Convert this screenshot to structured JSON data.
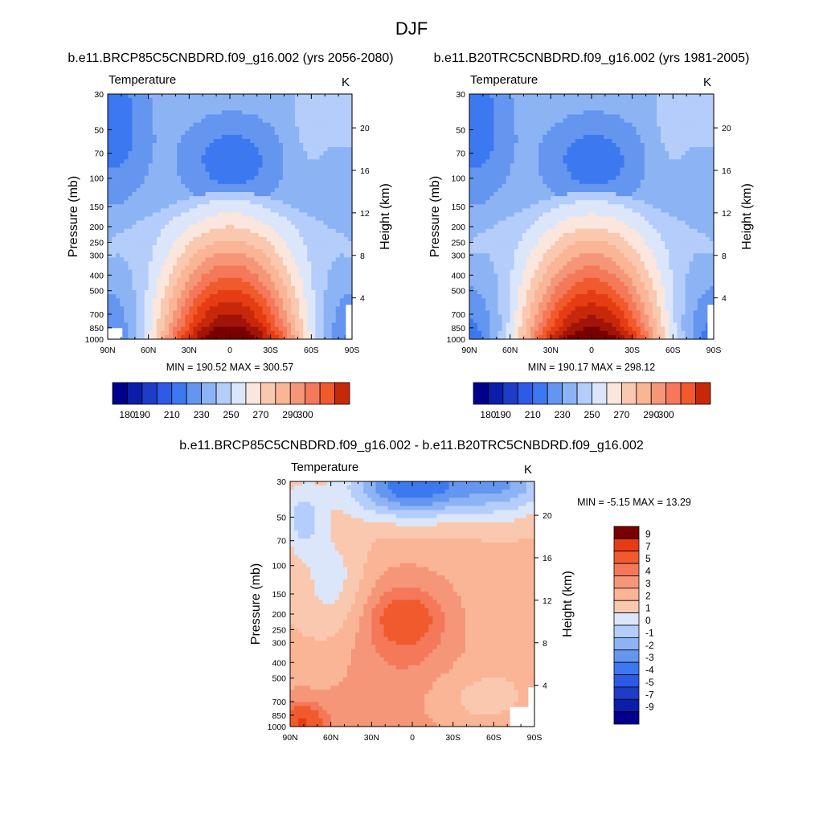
{
  "figure": {
    "title": "DJF",
    "colors": {
      "abs_palette": [
        "#00008c",
        "#0a1eaa",
        "#1e3cc8",
        "#2d5ae6",
        "#3c78f0",
        "#6496f0",
        "#8cb4f5",
        "#b4cdfa",
        "#dce6fa",
        "#fae6dc",
        "#fac8af",
        "#fab496",
        "#f59678",
        "#f5785a",
        "#f05a2d",
        "#e63c14",
        "#c8280a",
        "#a0140a",
        "#780000"
      ],
      "diff_palette": [
        "#00008c",
        "#0a1eaa",
        "#1e3cc8",
        "#2d5ae6",
        "#3c78f0",
        "#6496f0",
        "#8cb4f5",
        "#b4cdfa",
        "#dce6fa",
        "#fae6dc",
        "#fac8af",
        "#fab496",
        "#f59678",
        "#f5785a",
        "#f05a2d",
        "#e63c14",
        "#c8280a",
        "#780000"
      ]
    }
  },
  "chart_data": [
    {
      "type": "heatmap",
      "id": "panel1",
      "title": "b.e11.BRCP85C5CNBDRD.f09_g16.002 (yrs 2056-2080)",
      "variable": "Temperature",
      "units": "K",
      "xlabel": "",
      "ylabel": "Pressure (mb)",
      "y2label": "Height (km)",
      "x_ticks": [
        "90N",
        "60N",
        "30N",
        "0",
        "30S",
        "60S",
        "90S"
      ],
      "y_ticks": [
        "30",
        "50",
        "70",
        "100",
        "150",
        "200",
        "250",
        "300",
        "400",
        "500",
        "700",
        "850",
        "1000"
      ],
      "y2_ticks": [
        "20",
        "16",
        "12",
        "8",
        "4"
      ],
      "min_label": "MIN = 190.52",
      "max_label": "MAX = 300.57",
      "min": 190.52,
      "max": 300.57,
      "colorbar_ticks": [
        "180",
        "190",
        "210",
        "230",
        "250",
        "270",
        "290",
        "300"
      ]
    },
    {
      "type": "heatmap",
      "id": "panel2",
      "title": "b.e11.B20TRC5CNBDRD.f09_g16.002 (yrs 1981-2005)",
      "variable": "Temperature",
      "units": "K",
      "xlabel": "",
      "ylabel": "Pressure (mb)",
      "y2label": "Height (km)",
      "x_ticks": [
        "90N",
        "60N",
        "30N",
        "0",
        "30S",
        "60S",
        "90S"
      ],
      "y_ticks": [
        "30",
        "50",
        "70",
        "100",
        "150",
        "200",
        "250",
        "300",
        "400",
        "500",
        "700",
        "850",
        "1000"
      ],
      "y2_ticks": [
        "20",
        "16",
        "12",
        "8",
        "4"
      ],
      "min_label": "MIN = 190.17",
      "max_label": "MAX = 298.12",
      "min": 190.17,
      "max": 298.12,
      "colorbar_ticks": [
        "180",
        "190",
        "210",
        "230",
        "250",
        "270",
        "290",
        "300"
      ]
    },
    {
      "type": "heatmap",
      "id": "panel3",
      "title": "b.e11.BRCP85C5CNBDRD.f09_g16.002 - b.e11.B20TRC5CNBDRD.f09_g16.002",
      "variable": "Temperature",
      "units": "K",
      "xlabel": "",
      "ylabel": "Pressure (mb)",
      "y2label": "Height (km)",
      "x_ticks": [
        "90N",
        "60N",
        "30N",
        "0",
        "30S",
        "60S",
        "90S"
      ],
      "y_ticks": [
        "30",
        "50",
        "70",
        "100",
        "150",
        "200",
        "250",
        "300",
        "400",
        "500",
        "700",
        "850",
        "1000"
      ],
      "y2_ticks": [
        "20",
        "16",
        "12",
        "8",
        "4"
      ],
      "stats_label": "MIN =  -5.15  MAX =  13.29",
      "min": -5.15,
      "max": 13.29,
      "colorbar_ticks": [
        "9",
        "7",
        "5",
        "4",
        "3",
        "2",
        "1",
        "0",
        "-1",
        "-2",
        "-3",
        "-4",
        "-5",
        "-7",
        "-9"
      ]
    }
  ]
}
